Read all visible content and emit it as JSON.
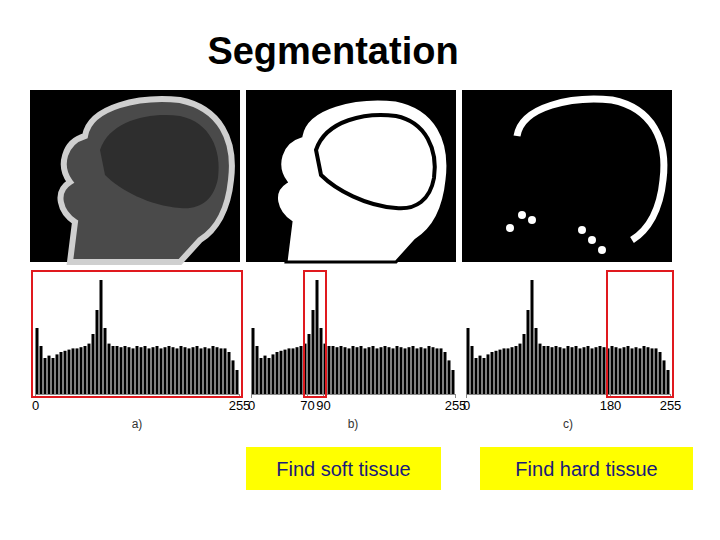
{
  "title": "Segmentation",
  "captions": [
    "Find soft tissue",
    "Find hard tissue"
  ],
  "chart_data": [
    {
      "type": "histogram",
      "xlabel": "a)",
      "bins": [
        0,
        5,
        10,
        15,
        20,
        25,
        30,
        35,
        40,
        45,
        50,
        55,
        60,
        65,
        70,
        75,
        80,
        85,
        90,
        95,
        100,
        105,
        110,
        115,
        120,
        125,
        130,
        135,
        140,
        145,
        150,
        155,
        160,
        165,
        170,
        175,
        180,
        185,
        190,
        195,
        200,
        205,
        210,
        215,
        220,
        225,
        230,
        235,
        240,
        245,
        250,
        255
      ],
      "values": [
        55,
        40,
        30,
        32,
        30,
        33,
        35,
        36,
        37,
        38,
        38,
        39,
        40,
        42,
        50,
        70,
        95,
        55,
        42,
        40,
        40,
        39,
        40,
        39,
        38,
        40,
        39,
        40,
        38,
        39,
        40,
        38,
        39,
        40,
        39,
        38,
        40,
        39,
        38,
        39,
        40,
        38,
        39,
        38,
        40,
        39,
        38,
        38,
        35,
        28,
        20
      ],
      "xlim": [
        0,
        255
      ],
      "xticks": [
        0,
        255
      ],
      "ylim": [
        0,
        100
      ],
      "tick_labels": "x",
      "color": "#000000",
      "selection": [
        0,
        255
      ]
    },
    {
      "type": "histogram",
      "xlabel": "b)",
      "bins": [
        0,
        5,
        10,
        15,
        20,
        25,
        30,
        35,
        40,
        45,
        50,
        55,
        60,
        65,
        70,
        75,
        80,
        85,
        90,
        95,
        100,
        105,
        110,
        115,
        120,
        125,
        130,
        135,
        140,
        145,
        150,
        155,
        160,
        165,
        170,
        175,
        180,
        185,
        190,
        195,
        200,
        205,
        210,
        215,
        220,
        225,
        230,
        235,
        240,
        245,
        250,
        255
      ],
      "values": [
        55,
        40,
        30,
        32,
        30,
        33,
        35,
        36,
        37,
        38,
        38,
        39,
        40,
        42,
        50,
        70,
        95,
        55,
        42,
        40,
        40,
        39,
        40,
        39,
        38,
        40,
        39,
        40,
        38,
        39,
        40,
        38,
        39,
        40,
        39,
        38,
        40,
        39,
        38,
        39,
        40,
        38,
        39,
        38,
        40,
        39,
        38,
        38,
        35,
        28,
        20
      ],
      "xlim": [
        0,
        255
      ],
      "xticks": [
        0,
        70,
        90,
        255
      ],
      "ylim": [
        0,
        100
      ],
      "tick_labels": "x",
      "color": "#000000",
      "selection": [
        70,
        90
      ]
    },
    {
      "type": "histogram",
      "xlabel": "c)",
      "bins": [
        0,
        5,
        10,
        15,
        20,
        25,
        30,
        35,
        40,
        45,
        50,
        55,
        60,
        65,
        70,
        75,
        80,
        85,
        90,
        95,
        100,
        105,
        110,
        115,
        120,
        125,
        130,
        135,
        140,
        145,
        150,
        155,
        160,
        165,
        170,
        175,
        180,
        185,
        190,
        195,
        200,
        205,
        210,
        215,
        220,
        225,
        230,
        235,
        240,
        245,
        250,
        255
      ],
      "values": [
        55,
        40,
        30,
        32,
        30,
        33,
        35,
        36,
        37,
        38,
        38,
        39,
        40,
        42,
        50,
        70,
        95,
        55,
        42,
        40,
        40,
        39,
        40,
        39,
        38,
        40,
        39,
        40,
        38,
        39,
        40,
        38,
        39,
        40,
        39,
        38,
        40,
        39,
        38,
        39,
        40,
        38,
        39,
        38,
        40,
        39,
        38,
        38,
        35,
        28,
        20
      ],
      "xlim": [
        0,
        255
      ],
      "xticks": [
        0,
        180,
        255
      ],
      "ylim": [
        0,
        100
      ],
      "tick_labels": "x",
      "color": "#000000",
      "selection": [
        180,
        255
      ]
    }
  ]
}
